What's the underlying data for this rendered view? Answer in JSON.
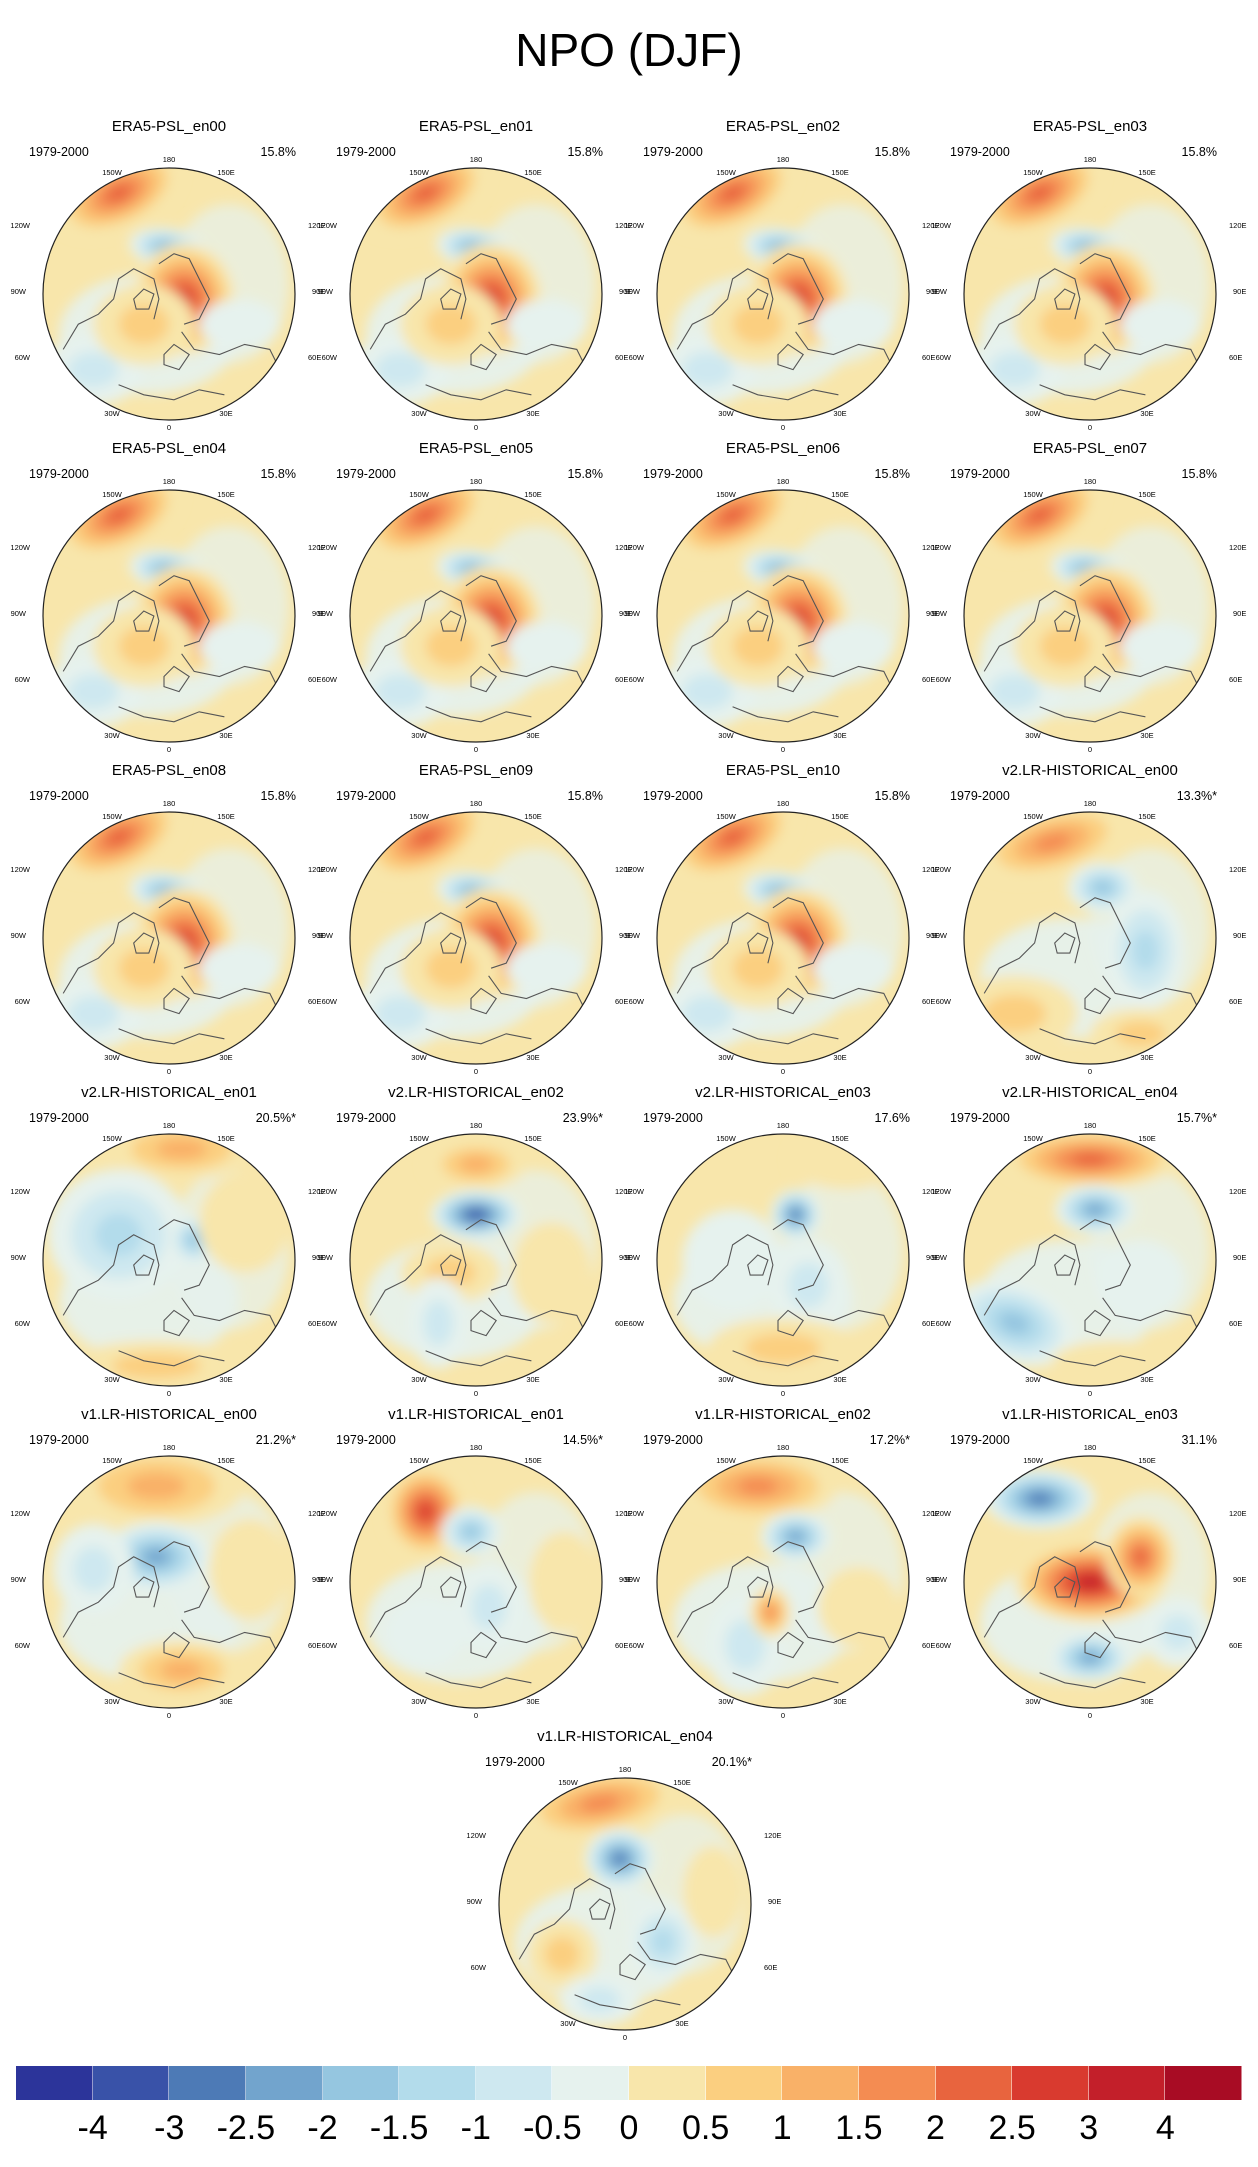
{
  "figure": {
    "title": "NPO (DJF)"
  },
  "colorbar": {
    "colors": [
      "#2c349a",
      "#3952a8",
      "#4d7ab6",
      "#72a4cd",
      "#95c6e0",
      "#b3dceb",
      "#cee8f0",
      "#e6f2ee",
      "#f8e6ab",
      "#fbcf80",
      "#f9b168",
      "#f48c52",
      "#e8643e",
      "#d93a2f",
      "#c31f2a",
      "#a80c24"
    ],
    "labels": [
      "-4",
      "-3",
      "-2.5",
      "-2",
      "-1.5",
      "-1",
      "-0.5",
      "0",
      "0.5",
      "1",
      "1.5",
      "2",
      "2.5",
      "3",
      "4"
    ]
  },
  "map_axis_labels": {
    "top": "180",
    "top_right": "150E",
    "right_upper": "120E",
    "right": "90E",
    "right_lower": "60E",
    "bottom_right": "30E",
    "bottom": "0",
    "bottom_left": "30W",
    "left_lower": "60W",
    "left": "90W",
    "left_upper": "120W",
    "top_left": "150W"
  },
  "chart_data": [
    {
      "type": "heatmap",
      "title": "ERA5-PSL_en00",
      "period": "1979-2000",
      "variance_explained": "15.8%",
      "pattern": "obs"
    },
    {
      "type": "heatmap",
      "title": "ERA5-PSL_en01",
      "period": "1979-2000",
      "variance_explained": "15.8%",
      "pattern": "obs"
    },
    {
      "type": "heatmap",
      "title": "ERA5-PSL_en02",
      "period": "1979-2000",
      "variance_explained": "15.8%",
      "pattern": "obs"
    },
    {
      "type": "heatmap",
      "title": "ERA5-PSL_en03",
      "period": "1979-2000",
      "variance_explained": "15.8%",
      "pattern": "obs"
    },
    {
      "type": "heatmap",
      "title": "ERA5-PSL_en04",
      "period": "1979-2000",
      "variance_explained": "15.8%",
      "pattern": "obs"
    },
    {
      "type": "heatmap",
      "title": "ERA5-PSL_en05",
      "period": "1979-2000",
      "variance_explained": "15.8%",
      "pattern": "obs"
    },
    {
      "type": "heatmap",
      "title": "ERA5-PSL_en06",
      "period": "1979-2000",
      "variance_explained": "15.8%",
      "pattern": "obs"
    },
    {
      "type": "heatmap",
      "title": "ERA5-PSL_en07",
      "period": "1979-2000",
      "variance_explained": "15.8%",
      "pattern": "obs"
    },
    {
      "type": "heatmap",
      "title": "ERA5-PSL_en08",
      "period": "1979-2000",
      "variance_explained": "15.8%",
      "pattern": "obs"
    },
    {
      "type": "heatmap",
      "title": "ERA5-PSL_en09",
      "period": "1979-2000",
      "variance_explained": "15.8%",
      "pattern": "obs"
    },
    {
      "type": "heatmap",
      "title": "ERA5-PSL_en10",
      "period": "1979-2000",
      "variance_explained": "15.8%",
      "pattern": "obs"
    },
    {
      "type": "heatmap",
      "title": "v2.LR-HISTORICAL_en00",
      "period": "1979-2000",
      "variance_explained": "13.3%*",
      "pattern": "v2_00"
    },
    {
      "type": "heatmap",
      "title": "v2.LR-HISTORICAL_en01",
      "period": "1979-2000",
      "variance_explained": "20.5%*",
      "pattern": "v2_01"
    },
    {
      "type": "heatmap",
      "title": "v2.LR-HISTORICAL_en02",
      "period": "1979-2000",
      "variance_explained": "23.9%*",
      "pattern": "v2_02"
    },
    {
      "type": "heatmap",
      "title": "v2.LR-HISTORICAL_en03",
      "period": "1979-2000",
      "variance_explained": "17.6%",
      "pattern": "v2_03"
    },
    {
      "type": "heatmap",
      "title": "v2.LR-HISTORICAL_en04",
      "period": "1979-2000",
      "variance_explained": "15.7%*",
      "pattern": "v2_04"
    },
    {
      "type": "heatmap",
      "title": "v1.LR-HISTORICAL_en00",
      "period": "1979-2000",
      "variance_explained": "21.2%*",
      "pattern": "v1_00"
    },
    {
      "type": "heatmap",
      "title": "v1.LR-HISTORICAL_en01",
      "period": "1979-2000",
      "variance_explained": "14.5%*",
      "pattern": "v1_01"
    },
    {
      "type": "heatmap",
      "title": "v1.LR-HISTORICAL_en02",
      "period": "1979-2000",
      "variance_explained": "17.2%*",
      "pattern": "v1_02"
    },
    {
      "type": "heatmap",
      "title": "v1.LR-HISTORICAL_en03",
      "period": "1979-2000",
      "variance_explained": "31.1%",
      "pattern": "v1_03"
    },
    {
      "type": "heatmap",
      "title": "v1.LR-HISTORICAL_en04",
      "period": "1979-2000",
      "variance_explained": "20.1%*",
      "pattern": "v1_04"
    }
  ]
}
